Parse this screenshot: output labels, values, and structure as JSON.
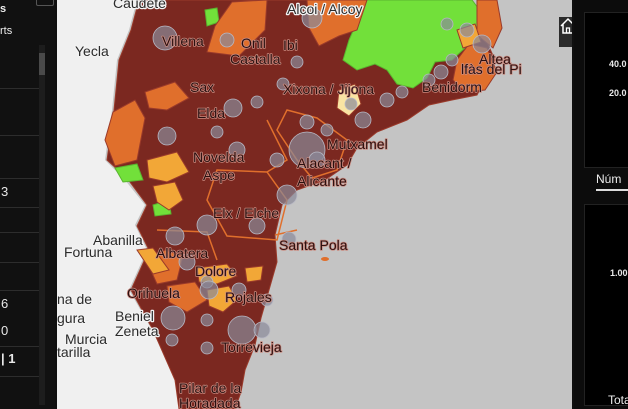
{
  "left_panel": {
    "title": "s",
    "subtitle": "rts",
    "values": [
      "3",
      "6",
      "0",
      "| 1"
    ]
  },
  "map": {
    "labels": {
      "caudete": "Caudete",
      "alcoi": "Alcoi / Alcoy",
      "yecla": "Yecla",
      "villena": "Villena",
      "onil": "Onil",
      "castalla": "Castalla",
      "ibi": "Ibi",
      "sax": "Sax",
      "xixona": "Xixona / Jijona",
      "elda": "Elda",
      "benidorm": "Benidorm",
      "altea": "Altea",
      "alfas": "lfàs del Pi",
      "mutxamel": "Mutxamel",
      "novelda": "Novelda",
      "aspe": "Aspe",
      "alacant": "Alacant /",
      "alicante": "Alicante",
      "elx": "Elx / Elche",
      "abanilla": "Abanilla",
      "fortuna": "Fortuna",
      "santapola": "Santa Pola",
      "albatera": "Albatera",
      "dolores": "Dolore",
      "orihuela": "Orihuela",
      "rojales": "Rojales",
      "nade": "na de",
      "gura": "gura",
      "beniel": "Beniel",
      "zeneta": "Zeneta",
      "murcia": "Murcia",
      "tarilla": "tarilla",
      "torrevieja": "Torrevieja",
      "pilar": "Pilar de la",
      "horadada": "Horadada"
    },
    "controls": {
      "home": "home-icon",
      "legend": "list-icon",
      "zoom_in": "+",
      "zoom_out": "−"
    },
    "colors": {
      "very_high": "#7b2820",
      "high": "#e06f2c",
      "medium": "#f2a737",
      "low": "#f9e4a3",
      "none": "#72e03a",
      "sea": "#c4c4c4",
      "land_outside": "#f0f0f0",
      "bubble": "#8a8a9a"
    }
  },
  "right_panel": {
    "ticks": [
      "40.0",
      "20.0",
      "1.00"
    ],
    "tab": "Núm",
    "total": "Tota"
  }
}
